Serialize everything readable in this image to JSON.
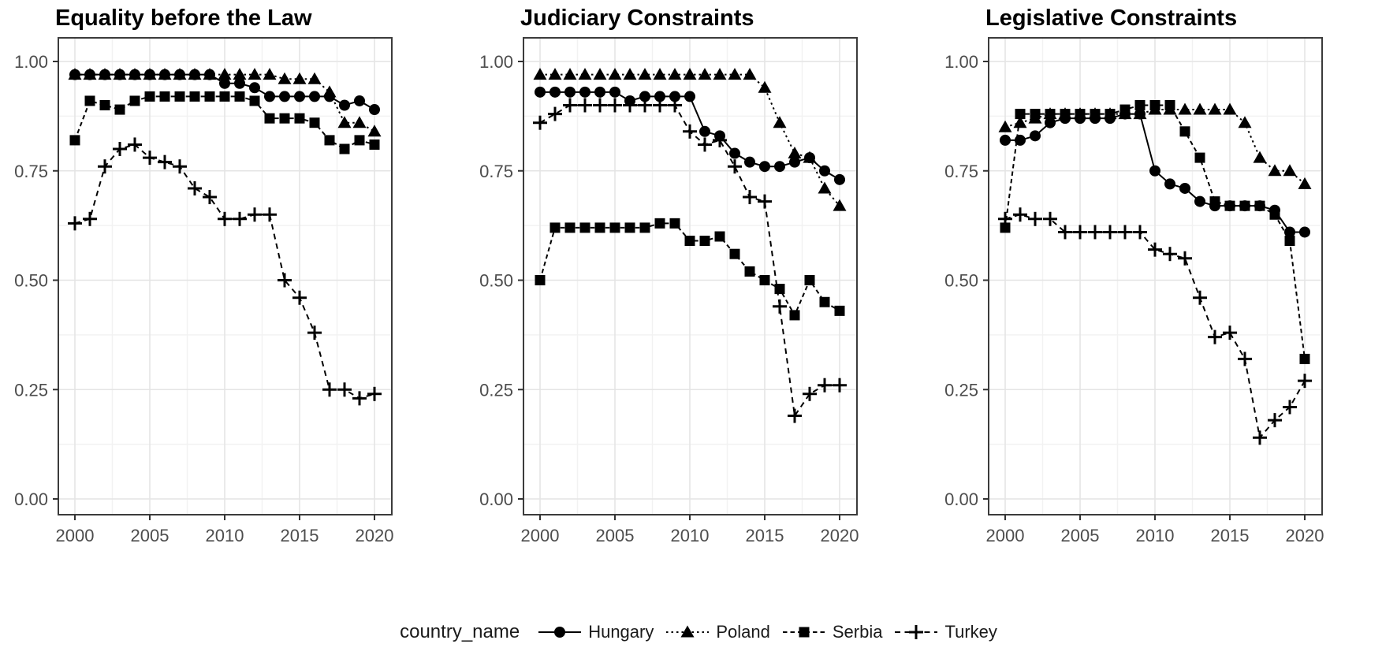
{
  "colors": {
    "series": "#000000",
    "axis_text": "#4d4d4d",
    "title_text": "#000000",
    "grid_major": "#e4e4e4",
    "grid_minor": "#f2f2f2",
    "panel_border": "#3b3b3b",
    "tick_mark": "#333333",
    "background": "#ffffff"
  },
  "legend": {
    "title": "country_name",
    "entries": [
      {
        "label": "Hungary",
        "marker": "circle",
        "linetype": "solid"
      },
      {
        "label": "Poland",
        "marker": "triangle",
        "linetype": "dotted"
      },
      {
        "label": "Serbia",
        "marker": "square",
        "linetype": "dashed"
      },
      {
        "label": "Turkey",
        "marker": "plus",
        "linetype": "longdash"
      }
    ]
  },
  "chart_data": [
    {
      "type": "line",
      "title": "Equality before the Law",
      "xlabel": "",
      "ylabel": "",
      "ylim": [
        0.0,
        1.0
      ],
      "yticks": [
        0.0,
        0.25,
        0.5,
        0.75,
        1.0
      ],
      "ytick_labels": [
        "0.00",
        "0.25",
        "0.50",
        "0.75",
        "1.00"
      ],
      "xticks": [
        2000,
        2005,
        2010,
        2015,
        2020
      ],
      "xtick_labels": [
        "2000",
        "2005",
        "2010",
        "2015",
        "2020"
      ],
      "grid": true,
      "legend_position": "bottom",
      "x": [
        2000,
        2001,
        2002,
        2003,
        2004,
        2005,
        2006,
        2007,
        2008,
        2009,
        2010,
        2011,
        2012,
        2013,
        2014,
        2015,
        2016,
        2017,
        2018,
        2019,
        2020
      ],
      "series": [
        {
          "name": "Hungary",
          "marker": "circle",
          "linetype": "solid",
          "values": [
            0.97,
            0.97,
            0.97,
            0.97,
            0.97,
            0.97,
            0.97,
            0.97,
            0.97,
            0.97,
            0.95,
            0.95,
            0.94,
            0.92,
            0.92,
            0.92,
            0.92,
            0.92,
            0.9,
            0.91,
            0.89
          ]
        },
        {
          "name": "Poland",
          "marker": "triangle",
          "linetype": "dotted",
          "values": [
            0.97,
            0.97,
            0.97,
            0.97,
            0.97,
            0.97,
            0.97,
            0.97,
            0.97,
            0.97,
            0.97,
            0.97,
            0.97,
            0.97,
            0.96,
            0.96,
            0.96,
            0.93,
            0.86,
            0.86,
            0.84
          ]
        },
        {
          "name": "Serbia",
          "marker": "square",
          "linetype": "dashed",
          "values": [
            0.82,
            0.91,
            0.9,
            0.89,
            0.91,
            0.92,
            0.92,
            0.92,
            0.92,
            0.92,
            0.92,
            0.92,
            0.91,
            0.87,
            0.87,
            0.87,
            0.86,
            0.82,
            0.8,
            0.82,
            0.81
          ]
        },
        {
          "name": "Turkey",
          "marker": "plus",
          "linetype": "longdash",
          "values": [
            0.63,
            0.64,
            0.76,
            0.8,
            0.81,
            0.78,
            0.77,
            0.76,
            0.71,
            0.69,
            0.64,
            0.64,
            0.65,
            0.65,
            0.5,
            0.46,
            0.38,
            0.25,
            0.25,
            0.23,
            0.24
          ]
        }
      ]
    },
    {
      "type": "line",
      "title": "Judiciary Constraints",
      "xlabel": "",
      "ylabel": "",
      "ylim": [
        0.0,
        1.0
      ],
      "yticks": [
        0.0,
        0.25,
        0.5,
        0.75,
        1.0
      ],
      "ytick_labels": [
        "0.00",
        "0.25",
        "0.50",
        "0.75",
        "1.00"
      ],
      "xticks": [
        2000,
        2005,
        2010,
        2015,
        2020
      ],
      "xtick_labels": [
        "2000",
        "2005",
        "2010",
        "2015",
        "2020"
      ],
      "grid": true,
      "legend_position": "bottom",
      "x": [
        2000,
        2001,
        2002,
        2003,
        2004,
        2005,
        2006,
        2007,
        2008,
        2009,
        2010,
        2011,
        2012,
        2013,
        2014,
        2015,
        2016,
        2017,
        2018,
        2019,
        2020
      ],
      "series": [
        {
          "name": "Hungary",
          "marker": "circle",
          "linetype": "solid",
          "values": [
            0.93,
            0.93,
            0.93,
            0.93,
            0.93,
            0.93,
            0.91,
            0.92,
            0.92,
            0.92,
            0.92,
            0.84,
            0.83,
            0.79,
            0.77,
            0.76,
            0.76,
            0.77,
            0.78,
            0.75,
            0.73
          ]
        },
        {
          "name": "Poland",
          "marker": "triangle",
          "linetype": "dotted",
          "values": [
            0.97,
            0.97,
            0.97,
            0.97,
            0.97,
            0.97,
            0.97,
            0.97,
            0.97,
            0.97,
            0.97,
            0.97,
            0.97,
            0.97,
            0.97,
            0.94,
            0.86,
            0.79,
            0.78,
            0.71,
            0.67
          ]
        },
        {
          "name": "Serbia",
          "marker": "square",
          "linetype": "dashed",
          "values": [
            0.5,
            0.62,
            0.62,
            0.62,
            0.62,
            0.62,
            0.62,
            0.62,
            0.63,
            0.63,
            0.59,
            0.59,
            0.6,
            0.56,
            0.52,
            0.5,
            0.48,
            0.42,
            0.5,
            0.45,
            0.43
          ]
        },
        {
          "name": "Turkey",
          "marker": "plus",
          "linetype": "longdash",
          "values": [
            0.86,
            0.88,
            0.9,
            0.9,
            0.9,
            0.9,
            0.9,
            0.9,
            0.9,
            0.9,
            0.84,
            0.81,
            0.82,
            0.76,
            0.69,
            0.68,
            0.44,
            0.19,
            0.24,
            0.26,
            0.26
          ]
        }
      ]
    },
    {
      "type": "line",
      "title": "Legislative Constraints",
      "xlabel": "",
      "ylabel": "",
      "ylim": [
        0.0,
        1.0
      ],
      "yticks": [
        0.0,
        0.25,
        0.5,
        0.75,
        1.0
      ],
      "ytick_labels": [
        "0.00",
        "0.25",
        "0.50",
        "0.75",
        "1.00"
      ],
      "xticks": [
        2000,
        2005,
        2010,
        2015,
        2020
      ],
      "xtick_labels": [
        "2000",
        "2005",
        "2010",
        "2015",
        "2020"
      ],
      "grid": true,
      "legend_position": "bottom",
      "x": [
        2000,
        2001,
        2002,
        2003,
        2004,
        2005,
        2006,
        2007,
        2008,
        2009,
        2010,
        2011,
        2012,
        2013,
        2014,
        2015,
        2016,
        2017,
        2018,
        2019,
        2020
      ],
      "series": [
        {
          "name": "Hungary",
          "marker": "circle",
          "linetype": "solid",
          "values": [
            0.82,
            0.82,
            0.83,
            0.86,
            0.87,
            0.87,
            0.87,
            0.87,
            0.88,
            0.88,
            0.75,
            0.72,
            0.71,
            0.68,
            0.67,
            0.67,
            0.67,
            0.67,
            0.66,
            0.61,
            0.61
          ]
        },
        {
          "name": "Poland",
          "marker": "triangle",
          "linetype": "dotted",
          "values": [
            0.85,
            0.86,
            0.87,
            0.88,
            0.88,
            0.88,
            0.88,
            0.88,
            0.88,
            0.88,
            0.89,
            0.89,
            0.89,
            0.89,
            0.89,
            0.89,
            0.86,
            0.78,
            0.75,
            0.75,
            0.72
          ]
        },
        {
          "name": "Serbia",
          "marker": "square",
          "linetype": "dashed",
          "values": [
            0.62,
            0.88,
            0.88,
            0.88,
            0.88,
            0.88,
            0.88,
            0.88,
            0.89,
            0.9,
            0.9,
            0.9,
            0.84,
            0.78,
            0.68,
            0.67,
            0.67,
            0.67,
            0.65,
            0.59,
            0.32
          ]
        },
        {
          "name": "Turkey",
          "marker": "plus",
          "linetype": "longdash",
          "values": [
            0.64,
            0.65,
            0.64,
            0.64,
            0.61,
            0.61,
            0.61,
            0.61,
            0.61,
            0.61,
            0.57,
            0.56,
            0.55,
            0.46,
            0.37,
            0.38,
            0.32,
            0.14,
            0.18,
            0.21,
            0.27
          ]
        }
      ]
    }
  ]
}
